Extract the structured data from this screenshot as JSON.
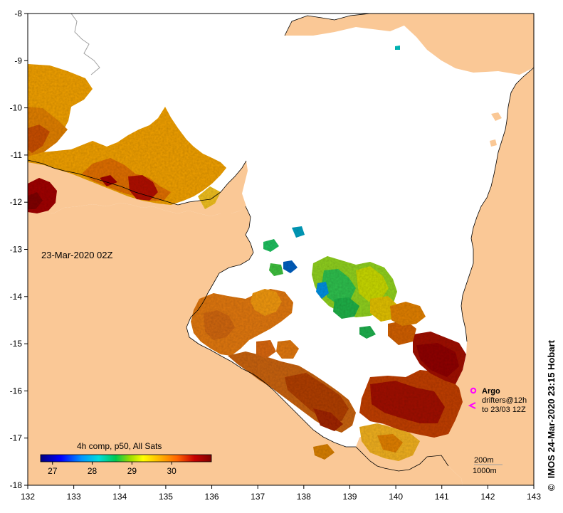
{
  "map": {
    "title": "IMOS 24-Mar-2020 23:15 Hobart",
    "copyright_symbol": "©",
    "date_label": "23-Mar-2020 02Z",
    "lon_range": [
      132,
      143
    ],
    "lat_range": [
      -18,
      -8
    ],
    "x_ticks": [
      "132",
      "133",
      "134",
      "135",
      "136",
      "137",
      "138",
      "139",
      "140",
      "141",
      "142",
      "143"
    ],
    "y_ticks": [
      "-8",
      "-9",
      "-10",
      "-11",
      "-12",
      "-13",
      "-14",
      "-15",
      "-16",
      "-17",
      "-18"
    ]
  },
  "colorbar": {
    "title": "4h comp, p50, All Sats",
    "min": 26.7,
    "max": 31.0,
    "tick_labels": [
      "27",
      "28",
      "29",
      "30"
    ],
    "tick_values": [
      27,
      28,
      29,
      30
    ]
  },
  "legend": {
    "argo_label": "Argo",
    "drifters_line1": "drifters@12h",
    "drifters_line2": "to 23/03 12Z",
    "depth_200": "200m",
    "depth_1000": "1000m"
  },
  "colors": {
    "land": "#fac896",
    "sea_nodata": "#ffffff",
    "argo_marker": "#ff00ff",
    "ramp": [
      "#000080",
      "#0000ff",
      "#0096ff",
      "#00dcdc",
      "#00c850",
      "#96dc00",
      "#ffff00",
      "#ffb400",
      "#ff6400",
      "#c80000",
      "#800000"
    ]
  }
}
